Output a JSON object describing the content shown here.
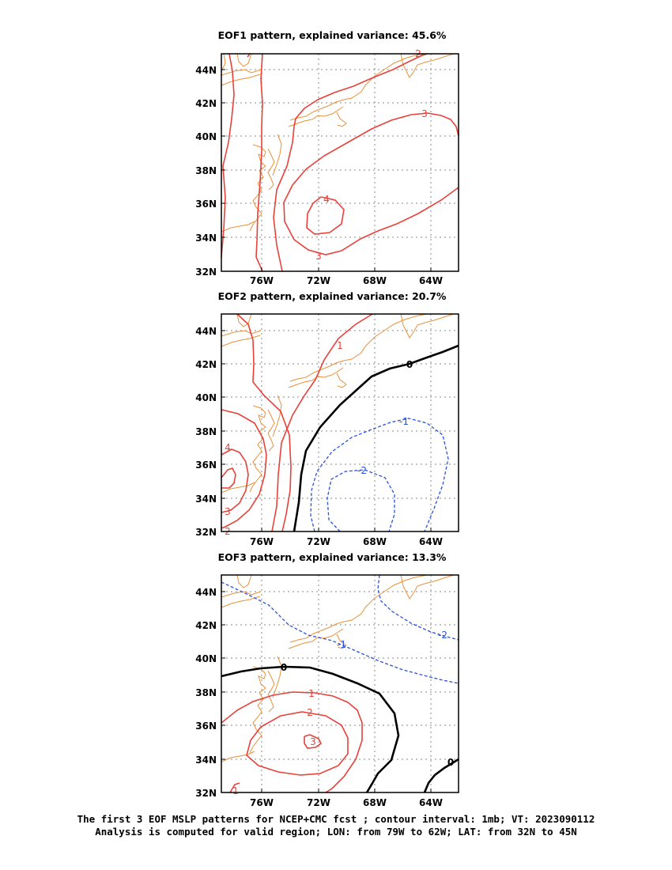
{
  "panels": [
    {
      "title": "EOF1 pattern, explained variance: 45.6%",
      "y_ticks": [
        "44N",
        "42N",
        "40N",
        "38N",
        "36N",
        "34N",
        "32N"
      ],
      "x_ticks": [
        "76W",
        "72W",
        "68W",
        "64W"
      ],
      "contour_labels": [
        "2",
        "3",
        "4",
        "3"
      ]
    },
    {
      "title": "EOF2 pattern, explained variance: 20.7%",
      "y_ticks": [
        "44N",
        "42N",
        "40N",
        "38N",
        "36N",
        "34N",
        "32N"
      ],
      "x_ticks": [
        "76W",
        "72W",
        "68W",
        "64W"
      ],
      "contour_labels": [
        "1",
        "0",
        "-1",
        "-2",
        "4",
        "3",
        "2"
      ]
    },
    {
      "title": "EOF3 pattern, explained variance: 13.3%",
      "y_ticks": [
        "44N",
        "42N",
        "40N",
        "38N",
        "36N",
        "34N",
        "32N"
      ],
      "x_ticks": [
        "76W",
        "72W",
        "68W",
        "64W"
      ],
      "contour_labels": [
        "-1",
        "-2",
        "0",
        "1",
        "2",
        "3",
        "0",
        "1"
      ]
    }
  ],
  "caption": {
    "line1": "The first 3 EOF MSLP patterns for NCEP+CMC fcst ; contour interval: 1mb; VT: 2023090112",
    "line2": "Analysis is computed for valid region; LON: from 79W to 62W; LAT: from 32N to 45N"
  },
  "map": {
    "lon_range": [
      "79W",
      "62W"
    ],
    "lat_range": [
      "32N",
      "45N"
    ],
    "contour_interval": "1mb"
  },
  "colors": {
    "positive_contour": "#e8413a",
    "negative_contour": "#2a52e0",
    "zero_contour": "#000000",
    "coastline": "#e8913a",
    "grid": "#888888"
  }
}
